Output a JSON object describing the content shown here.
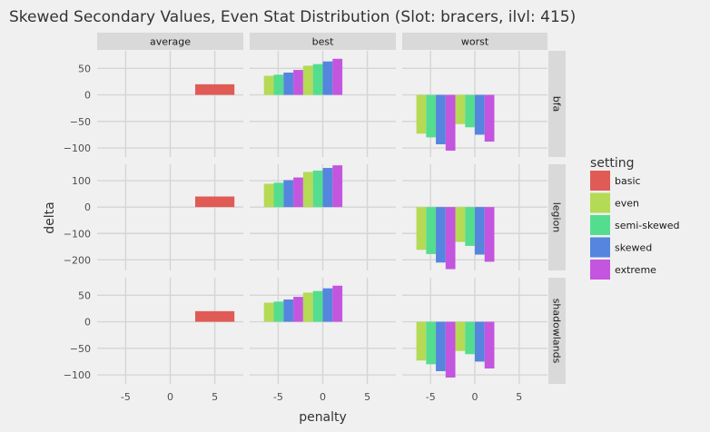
{
  "chart_data": {
    "type": "bar",
    "title": "Skewed Secondary Values, Even Stat Distribution (Slot: bracers, ilvl: 415)",
    "xlabel": "penalty",
    "ylabel": "delta",
    "col_facets": [
      "average",
      "best",
      "worst"
    ],
    "row_facets": [
      "bfa",
      "legion",
      "shadowlands"
    ],
    "xlim": [
      -8.2,
      8.2
    ],
    "x_ticks": [
      -5,
      0,
      5
    ],
    "x_tick_labels": [
      "-5",
      "0",
      "5"
    ],
    "bar_width": 1.1,
    "rows": [
      {
        "name": "bfa",
        "ylim": [
          -117,
          83
        ],
        "y_ticks": [
          50,
          0,
          -50,
          -100
        ],
        "y_tick_labels": [
          "50",
          "0",
          "−50",
          "−100"
        ]
      },
      {
        "name": "legion",
        "ylim": [
          -240,
          162
        ],
        "y_ticks": [
          100,
          0,
          -100,
          -200
        ],
        "y_tick_labels": [
          "100",
          "0",
          "−100",
          "−200"
        ]
      },
      {
        "name": "shadowlands",
        "ylim": [
          -117,
          83
        ],
        "y_ticks": [
          50,
          0,
          -50,
          -100
        ],
        "y_tick_labels": [
          "50",
          "0",
          "−50",
          "−100"
        ]
      }
    ],
    "legend": {
      "title": "setting",
      "position": "right",
      "items": [
        {
          "name": "basic",
          "color": "#e05b55"
        },
        {
          "name": "even",
          "color": "#b5da55"
        },
        {
          "name": "semi-skewed",
          "color": "#55dd8f"
        },
        {
          "name": "skewed",
          "color": "#5585de"
        },
        {
          "name": "extreme",
          "color": "#c455de"
        }
      ]
    },
    "bars": [
      {
        "row": "bfa",
        "col": "average",
        "setting": "basic",
        "x": 5,
        "y": 20,
        "width": 4.4
      },
      {
        "row": "bfa",
        "col": "best",
        "setting": "even",
        "x": -6.05,
        "y": 36
      },
      {
        "row": "bfa",
        "col": "best",
        "setting": "semi-skewed",
        "x": -4.95,
        "y": 38
      },
      {
        "row": "bfa",
        "col": "best",
        "setting": "skewed",
        "x": -3.85,
        "y": 42
      },
      {
        "row": "bfa",
        "col": "best",
        "setting": "extreme",
        "x": -2.75,
        "y": 47
      },
      {
        "row": "bfa",
        "col": "best",
        "setting": "even",
        "x": -1.65,
        "y": 55
      },
      {
        "row": "bfa",
        "col": "best",
        "setting": "semi-skewed",
        "x": -0.55,
        "y": 58
      },
      {
        "row": "bfa",
        "col": "best",
        "setting": "skewed",
        "x": 0.55,
        "y": 63
      },
      {
        "row": "bfa",
        "col": "best",
        "setting": "extreme",
        "x": 1.65,
        "y": 68
      },
      {
        "row": "bfa",
        "col": "worst",
        "setting": "even",
        "x": -6.05,
        "y": -73
      },
      {
        "row": "bfa",
        "col": "worst",
        "setting": "semi-skewed",
        "x": -4.95,
        "y": -80
      },
      {
        "row": "bfa",
        "col": "worst",
        "setting": "skewed",
        "x": -3.85,
        "y": -93
      },
      {
        "row": "bfa",
        "col": "worst",
        "setting": "extreme",
        "x": -2.75,
        "y": -105
      },
      {
        "row": "bfa",
        "col": "worst",
        "setting": "even",
        "x": -1.65,
        "y": -55
      },
      {
        "row": "bfa",
        "col": "worst",
        "setting": "semi-skewed",
        "x": -0.55,
        "y": -61
      },
      {
        "row": "bfa",
        "col": "worst",
        "setting": "skewed",
        "x": 0.55,
        "y": -75
      },
      {
        "row": "bfa",
        "col": "worst",
        "setting": "extreme",
        "x": 1.65,
        "y": -88
      },
      {
        "row": "legion",
        "col": "average",
        "setting": "basic",
        "x": 5,
        "y": 40,
        "width": 4.4
      },
      {
        "row": "legion",
        "col": "best",
        "setting": "even",
        "x": -6.05,
        "y": 88
      },
      {
        "row": "legion",
        "col": "best",
        "setting": "semi-skewed",
        "x": -4.95,
        "y": 92
      },
      {
        "row": "legion",
        "col": "best",
        "setting": "skewed",
        "x": -3.85,
        "y": 102
      },
      {
        "row": "legion",
        "col": "best",
        "setting": "extreme",
        "x": -2.75,
        "y": 112
      },
      {
        "row": "legion",
        "col": "best",
        "setting": "even",
        "x": -1.65,
        "y": 133
      },
      {
        "row": "legion",
        "col": "best",
        "setting": "semi-skewed",
        "x": -0.55,
        "y": 138
      },
      {
        "row": "legion",
        "col": "best",
        "setting": "skewed",
        "x": 0.55,
        "y": 148
      },
      {
        "row": "legion",
        "col": "best",
        "setting": "extreme",
        "x": 1.65,
        "y": 158
      },
      {
        "row": "legion",
        "col": "worst",
        "setting": "even",
        "x": -6.05,
        "y": -162
      },
      {
        "row": "legion",
        "col": "worst",
        "setting": "semi-skewed",
        "x": -4.95,
        "y": -178
      },
      {
        "row": "legion",
        "col": "worst",
        "setting": "skewed",
        "x": -3.85,
        "y": -210
      },
      {
        "row": "legion",
        "col": "worst",
        "setting": "extreme",
        "x": -2.75,
        "y": -235
      },
      {
        "row": "legion",
        "col": "worst",
        "setting": "even",
        "x": -1.65,
        "y": -132
      },
      {
        "row": "legion",
        "col": "worst",
        "setting": "semi-skewed",
        "x": -0.55,
        "y": -147
      },
      {
        "row": "legion",
        "col": "worst",
        "setting": "skewed",
        "x": 0.55,
        "y": -180
      },
      {
        "row": "legion",
        "col": "worst",
        "setting": "extreme",
        "x": 1.65,
        "y": -207
      },
      {
        "row": "shadowlands",
        "col": "average",
        "setting": "basic",
        "x": 5,
        "y": 20,
        "width": 4.4
      },
      {
        "row": "shadowlands",
        "col": "best",
        "setting": "even",
        "x": -6.05,
        "y": 36
      },
      {
        "row": "shadowlands",
        "col": "best",
        "setting": "semi-skewed",
        "x": -4.95,
        "y": 38
      },
      {
        "row": "shadowlands",
        "col": "best",
        "setting": "skewed",
        "x": -3.85,
        "y": 42
      },
      {
        "row": "shadowlands",
        "col": "best",
        "setting": "extreme",
        "x": -2.75,
        "y": 47
      },
      {
        "row": "shadowlands",
        "col": "best",
        "setting": "even",
        "x": -1.65,
        "y": 55
      },
      {
        "row": "shadowlands",
        "col": "best",
        "setting": "semi-skewed",
        "x": -0.55,
        "y": 58
      },
      {
        "row": "shadowlands",
        "col": "best",
        "setting": "skewed",
        "x": 0.55,
        "y": 63
      },
      {
        "row": "shadowlands",
        "col": "best",
        "setting": "extreme",
        "x": 1.65,
        "y": 68
      },
      {
        "row": "shadowlands",
        "col": "worst",
        "setting": "even",
        "x": -6.05,
        "y": -73
      },
      {
        "row": "shadowlands",
        "col": "worst",
        "setting": "semi-skewed",
        "x": -4.95,
        "y": -80
      },
      {
        "row": "shadowlands",
        "col": "worst",
        "setting": "skewed",
        "x": -3.85,
        "y": -93
      },
      {
        "row": "shadowlands",
        "col": "worst",
        "setting": "extreme",
        "x": -2.75,
        "y": -105
      },
      {
        "row": "shadowlands",
        "col": "worst",
        "setting": "even",
        "x": -1.65,
        "y": -55
      },
      {
        "row": "shadowlands",
        "col": "worst",
        "setting": "semi-skewed",
        "x": -0.55,
        "y": -61
      },
      {
        "row": "shadowlands",
        "col": "worst",
        "setting": "skewed",
        "x": 0.55,
        "y": -75
      },
      {
        "row": "shadowlands",
        "col": "worst",
        "setting": "extreme",
        "x": 1.65,
        "y": -88
      }
    ]
  }
}
